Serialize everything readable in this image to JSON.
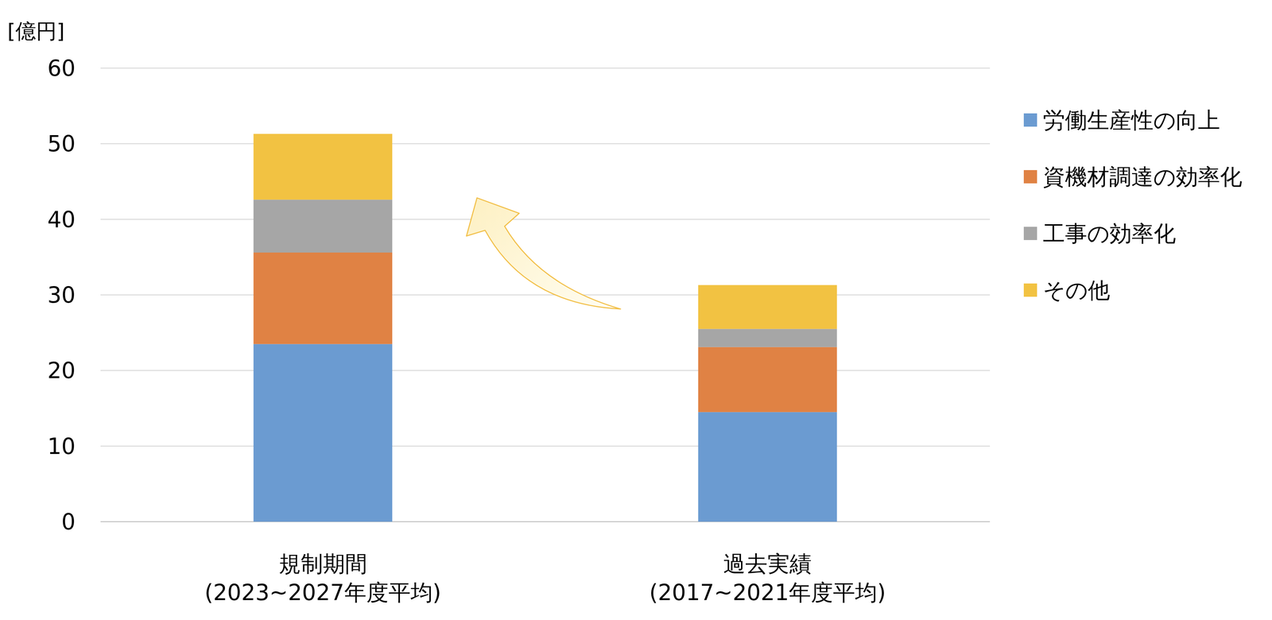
{
  "chart_data": {
    "type": "bar",
    "stacked": true,
    "y_label": "[億円]",
    "categories": [
      "規制期間\n(2023~2027年度平均)",
      "過去実績\n(2017~2021年度平均)"
    ],
    "series": [
      {
        "name": "労働生産性の向上",
        "color": "#6b9bd1",
        "values": [
          23.5,
          14.5
        ]
      },
      {
        "name": "資機材調達の効率化",
        "color": "#e08244",
        "values": [
          12.1,
          8.6
        ]
      },
      {
        "name": "工事の効率化",
        "color": "#a6a6a6",
        "values": [
          7.0,
          2.4
        ]
      },
      {
        "name": "その他",
        "color": "#f2c242",
        "values": [
          8.7,
          5.8
        ]
      }
    ],
    "ylim": [
      0,
      60
    ],
    "yticks": [
      0,
      10,
      20,
      30,
      40,
      50,
      60
    ],
    "grid": true,
    "legend": "right"
  }
}
